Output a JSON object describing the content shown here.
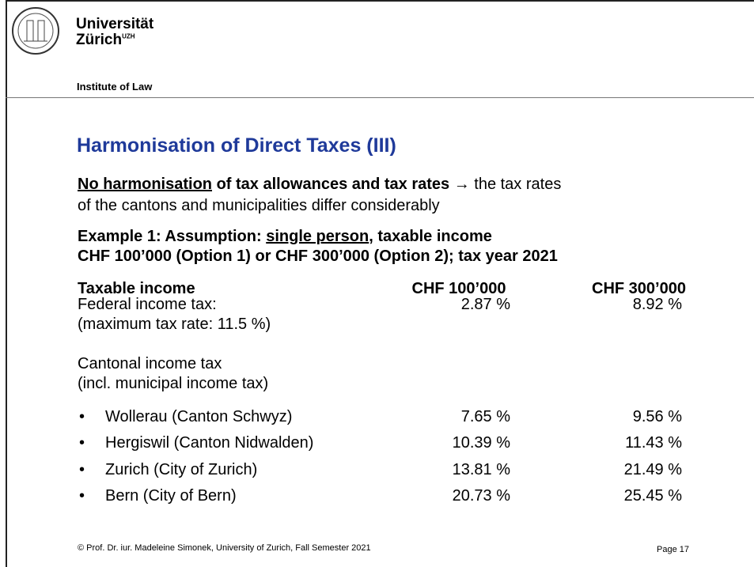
{
  "header": {
    "university": [
      "Universität",
      "Zürich"
    ],
    "uzh": "UZH",
    "institute": "Institute of Law"
  },
  "title": "Harmonisation of Direct Taxes (III)",
  "intro": {
    "underlined": "No harmonisation",
    "bold": " of tax allowances and tax rates",
    "arrow": "→",
    "line1": " the tax rates",
    "line2": "of the cantons and municipalities differ considerably"
  },
  "example": {
    "start": "Example 1: Assumption: ",
    "underlined": "single person",
    "end": ", taxable income",
    "line2": "CHF 100’000 (Option 1) or CHF 300’000 (Option 2); tax year 2021"
  },
  "table": {
    "header": [
      "Taxable income",
      "CHF 100’000",
      "CHF 300’000"
    ],
    "rows": [
      {
        "label": [
          "Federal income tax:",
          "(maximum tax rate: 11.5 %)"
        ],
        "values": [
          "2.87 %",
          "8.92 %"
        ]
      },
      {
        "label": [
          "Cantonal income tax",
          "(incl. municipal income tax)"
        ]
      },
      {
        "bullet": "•",
        "label": [
          "Wollerau (Canton Schwyz)"
        ],
        "values": [
          "7.65 %",
          "9.56 %"
        ]
      },
      {
        "bullet": "•",
        "label": [
          "Hergiswil (Canton Nidwalden)"
        ],
        "values": [
          "10.39 %",
          "11.43 %"
        ]
      },
      {
        "bullet": "•",
        "label": [
          "Zurich (City of Zurich)"
        ],
        "values": [
          "13.81 %",
          "21.49 %"
        ]
      },
      {
        "bullet": "•",
        "label": [
          "Bern (City of Bern)"
        ],
        "values": [
          "20.73 %",
          "25.45 %"
        ]
      }
    ]
  },
  "footer": {
    "copyright": "© Prof. Dr. iur. Madeleine Simonek, University of Zurich, Fall Semester 2021",
    "page": "Page 17"
  }
}
